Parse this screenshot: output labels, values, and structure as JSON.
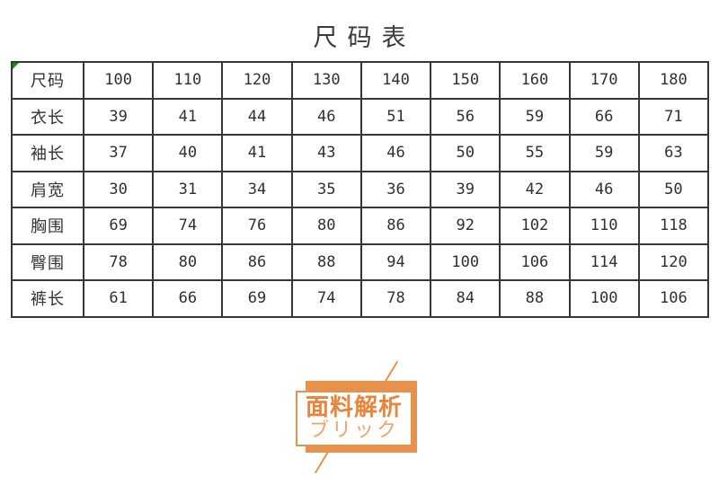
{
  "page": {
    "title": "尺码表"
  },
  "size_table": {
    "header": {
      "label": "尺码",
      "sizes": [
        "100",
        "110",
        "120",
        "130",
        "140",
        "150",
        "160",
        "170",
        "180"
      ]
    },
    "rows": [
      {
        "label": "衣长",
        "values": [
          "39",
          "41",
          "44",
          "46",
          "51",
          "56",
          "59",
          "66",
          "71"
        ]
      },
      {
        "label": "袖长",
        "values": [
          "37",
          "40",
          "41",
          "43",
          "46",
          "50",
          "55",
          "59",
          "63"
        ]
      },
      {
        "label": "肩宽",
        "values": [
          "30",
          "31",
          "34",
          "35",
          "36",
          "39",
          "42",
          "46",
          "50"
        ]
      },
      {
        "label": "胸围",
        "values": [
          "69",
          "74",
          "76",
          "80",
          "86",
          "92",
          "102",
          "110",
          "118"
        ]
      },
      {
        "label": "臀围",
        "values": [
          "78",
          "80",
          "86",
          "88",
          "94",
          "100",
          "106",
          "114",
          "120"
        ]
      },
      {
        "label": "裤长",
        "values": [
          "61",
          "66",
          "69",
          "74",
          "78",
          "84",
          "88",
          "100",
          "106"
        ]
      }
    ]
  },
  "logo": {
    "line1": "面料解析",
    "line2": "ブリック"
  },
  "colors": {
    "accent": "#E8914D",
    "accent_strong": "#E8843C",
    "accent_light": "#F0A269",
    "table_border": "#373737",
    "text": "#3a3a3a",
    "corner_marker": "#149414"
  }
}
